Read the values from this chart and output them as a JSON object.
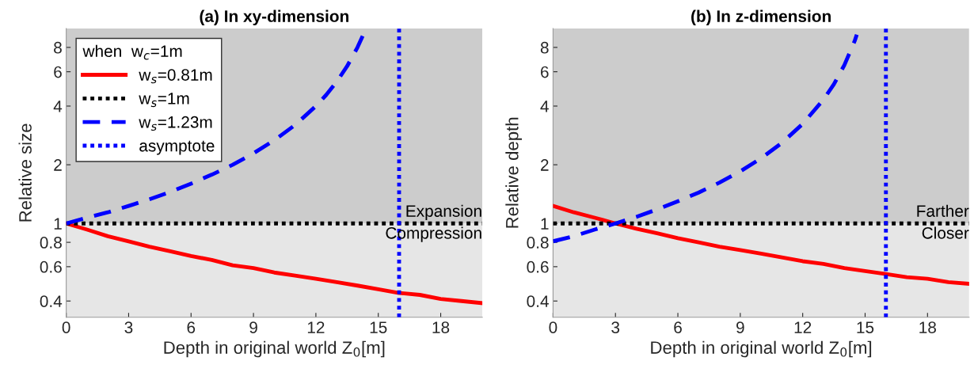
{
  "chart_data": [
    {
      "type": "line",
      "title": "(a) In xy-dimension",
      "xlabel": "Depth in original world Z$_{0}$[m]",
      "ylabel": "Relative size",
      "legend_title": "when  w$_{c}$=1m",
      "legend": "top left",
      "log": "y",
      "xlim": [
        0,
        20
      ],
      "xticks": [
        0,
        3,
        6,
        9,
        12,
        15,
        18
      ],
      "ylim": [
        0.33,
        10
      ],
      "yticks": [
        0.4,
        0.6,
        0.8,
        1,
        2,
        4,
        6,
        8
      ],
      "bands": [
        {
          "axis": "y",
          "from": 1,
          "to": 10,
          "label": "Expansion",
          "color": "#cccccc"
        },
        {
          "axis": "y",
          "from": 0.33,
          "to": 1,
          "label": "Compression",
          "color": "#e6e6e6"
        }
      ],
      "series": [
        {
          "name": "w$_{s}$=0.81m",
          "color": "#ff0000",
          "line_style": "solid",
          "x": [
            0,
            1,
            2,
            3,
            4,
            5,
            6,
            7,
            8,
            9,
            10,
            11,
            12,
            13,
            14,
            15,
            16,
            17,
            18,
            19,
            20
          ],
          "values": [
            1,
            0.93,
            0.86,
            0.81,
            0.76,
            0.72,
            0.68,
            0.65,
            0.61,
            0.59,
            0.56,
            0.54,
            0.52,
            0.5,
            0.48,
            0.46,
            0.44,
            0.43,
            0.41,
            0.4,
            0.39
          ]
        },
        {
          "name": "w$_{s}$=1m",
          "color": "#000000",
          "line_style": "dotted",
          "x": [
            0,
            20
          ],
          "values": [
            1,
            1
          ]
        },
        {
          "name": "w$_{s}$=1.23m",
          "color": "#0000ff",
          "line_style": "dashed",
          "x": [
            0,
            1,
            2,
            3,
            4,
            5,
            6,
            7,
            8,
            9,
            10,
            11,
            12,
            12.5,
            13,
            13.5,
            14,
            14.3
          ],
          "values": [
            1,
            1.07,
            1.14,
            1.23,
            1.33,
            1.45,
            1.6,
            1.78,
            2,
            2.29,
            2.67,
            3.2,
            4,
            4.57,
            5.33,
            6.4,
            8,
            9.4
          ]
        },
        {
          "name": "asymptote",
          "color": "#0000ff",
          "line_style": "dotted",
          "x": [
            16,
            16
          ],
          "values": [
            0.33,
            10
          ]
        }
      ]
    },
    {
      "type": "line",
      "title": "(b) In z-dimension",
      "xlabel": "Depth in original world Z$_{0}$[m]",
      "ylabel": "Relative depth",
      "log": "y",
      "xlim": [
        0,
        20
      ],
      "xticks": [
        0,
        3,
        6,
        9,
        12,
        15,
        18
      ],
      "ylim": [
        0.33,
        10
      ],
      "yticks": [
        0.4,
        0.6,
        0.8,
        1,
        2,
        4,
        6,
        8
      ],
      "bands": [
        {
          "axis": "y",
          "from": 1,
          "to": 10,
          "label": "Farther",
          "color": "#cccccc"
        },
        {
          "axis": "y",
          "from": 0.33,
          "to": 1,
          "label": "Closer",
          "color": "#e6e6e6"
        }
      ],
      "series": [
        {
          "color": "#ff0000",
          "line_style": "solid",
          "x": [
            0,
            1,
            2,
            3,
            4,
            5,
            6,
            7,
            8,
            9,
            10,
            11,
            12,
            13,
            14,
            15,
            16,
            17,
            18,
            19,
            20
          ],
          "values": [
            1.23,
            1.14,
            1.07,
            1,
            0.94,
            0.89,
            0.84,
            0.8,
            0.76,
            0.73,
            0.7,
            0.67,
            0.64,
            0.62,
            0.59,
            0.57,
            0.55,
            0.53,
            0.52,
            0.5,
            0.49
          ]
        },
        {
          "color": "#000000",
          "line_style": "dotted",
          "x": [
            0,
            20
          ],
          "values": [
            1,
            1
          ]
        },
        {
          "color": "#0000ff",
          "line_style": "dashed",
          "x": [
            0,
            1,
            2,
            3,
            4,
            5,
            6,
            7,
            8,
            9,
            10,
            11,
            12,
            13,
            13.5,
            14,
            14.5,
            14.6
          ],
          "values": [
            0.81,
            0.86,
            0.93,
            1,
            1.08,
            1.18,
            1.3,
            1.44,
            1.62,
            1.85,
            2.16,
            2.59,
            3.24,
            4.32,
            5.18,
            6.48,
            8.64,
            9.3
          ]
        },
        {
          "color": "#0000ff",
          "line_style": "dotted",
          "x": [
            16,
            16
          ],
          "values": [
            0.33,
            10
          ]
        }
      ]
    }
  ]
}
